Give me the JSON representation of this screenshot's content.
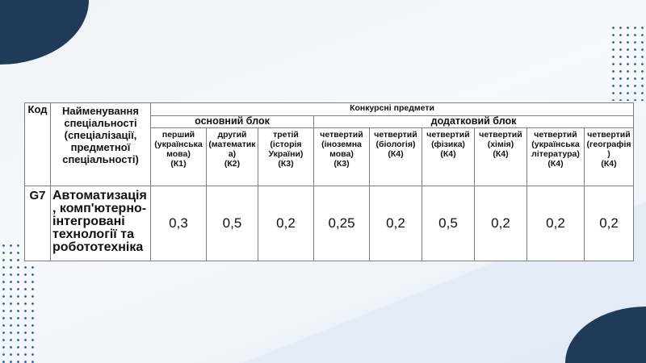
{
  "table": {
    "header": {
      "code": "Код",
      "name": "Найменування спеціальності (спеціалізації, предметної спеціальності)",
      "subjects": "Конкурсні предмети",
      "main_block": "основний блок",
      "extra_block": "додатковий блок"
    },
    "subjects": [
      {
        "line1": "перший",
        "line2": "(українська мова)",
        "line3": "(К1)"
      },
      {
        "line1": "другий",
        "line2": "(математика)",
        "line3": "(К2)"
      },
      {
        "line1": "третій",
        "line2": "(історія України)",
        "line3": "(К3)"
      },
      {
        "line1": "четвертий",
        "line2": "(іноземна мова)",
        "line3": "(К3)"
      },
      {
        "line1": "четвертий",
        "line2": "(біологія)",
        "line3": "(К4)"
      },
      {
        "line1": "четвертий",
        "line2": "(фізика)",
        "line3": "(К4)"
      },
      {
        "line1": "четвертий",
        "line2": "(хімія)",
        "line3": "(К4)"
      },
      {
        "line1": "четвертий",
        "line2": "(українська література)",
        "line3": "(К4)"
      },
      {
        "line1": "четвертий",
        "line2": "(географія)",
        "line3": "(К4)"
      }
    ],
    "row": {
      "code": "G7",
      "name": "Автоматизація, комп'ютерно-інтегровані технології та робототехніка",
      "values": [
        "0,3",
        "0,5",
        "0,2",
        "0,25",
        "0,2",
        "0,5",
        "0,2",
        "0,2",
        "0,2"
      ]
    }
  },
  "colors": {
    "navy": "#1f3b58",
    "dots": "#3d6fa8"
  }
}
